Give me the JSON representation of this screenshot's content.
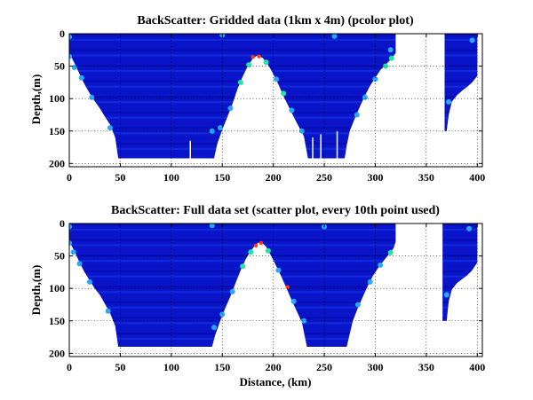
{
  "figure": {
    "background": "#ffffff"
  },
  "chart_data": [
    {
      "type": "heatmap",
      "title": "BackScatter: Gridded data (1km x 4m) (pcolor plot)",
      "xlabel": "",
      "ylabel": "Depth,(m)",
      "xlim": [
        0,
        405
      ],
      "ylim": [
        0,
        205
      ],
      "y_reversed": true,
      "grid": true,
      "xticks": [
        "0",
        "50",
        "100",
        "150",
        "200",
        "250",
        "300",
        "350",
        "400"
      ],
      "yticks": [
        "0",
        "50",
        "100",
        "150",
        "200"
      ],
      "colors": {
        "base": "#0a14c8",
        "deep": "#00008f",
        "shallow": "#1e50ff",
        "mid": "#2aa8ff",
        "high": "#21e5a0",
        "hot": "#ff3a0a"
      },
      "data_region": [
        [
          0,
          30
        ],
        [
          5,
          45
        ],
        [
          10,
          62
        ],
        [
          15,
          78
        ],
        [
          20,
          92
        ],
        [
          25,
          104
        ],
        [
          30,
          115
        ],
        [
          35,
          128
        ],
        [
          40,
          140
        ],
        [
          45,
          160
        ],
        [
          48,
          192
        ],
        [
          100,
          192
        ],
        [
          142,
          192
        ],
        [
          145,
          170
        ],
        [
          150,
          148
        ],
        [
          155,
          128
        ],
        [
          160,
          108
        ],
        [
          165,
          85
        ],
        [
          170,
          66
        ],
        [
          175,
          50
        ],
        [
          180,
          38
        ],
        [
          185,
          33
        ],
        [
          190,
          38
        ],
        [
          195,
          48
        ],
        [
          200,
          62
        ],
        [
          205,
          78
        ],
        [
          210,
          96
        ],
        [
          215,
          112
        ],
        [
          220,
          128
        ],
        [
          225,
          143
        ],
        [
          230,
          158
        ],
        [
          234,
          192
        ],
        [
          270,
          192
        ],
        [
          272,
          172
        ],
        [
          275,
          150
        ],
        [
          280,
          130
        ],
        [
          285,
          112
        ],
        [
          290,
          95
        ],
        [
          295,
          80
        ],
        [
          300,
          68
        ],
        [
          305,
          56
        ],
        [
          310,
          48
        ],
        [
          315,
          40
        ],
        [
          320,
          30
        ],
        [
          320,
          0
        ],
        [
          0,
          0
        ]
      ],
      "data_region_far": [
        [
          368,
          0
        ],
        [
          400,
          0
        ],
        [
          400,
          65
        ],
        [
          395,
          75
        ],
        [
          390,
          82
        ],
        [
          385,
          88
        ],
        [
          380,
          95
        ],
        [
          375,
          105
        ],
        [
          372,
          125
        ],
        [
          370,
          150
        ],
        [
          368,
          150
        ]
      ],
      "edge_highlights": [
        [
          0,
          35,
          "mid"
        ],
        [
          5,
          52,
          "mid"
        ],
        [
          12,
          68,
          "mid"
        ],
        [
          22,
          98,
          "mid"
        ],
        [
          40,
          145,
          "mid"
        ],
        [
          140,
          150,
          "mid"
        ],
        [
          148,
          145,
          "mid"
        ],
        [
          158,
          115,
          "mid"
        ],
        [
          168,
          75,
          "high"
        ],
        [
          176,
          48,
          "high"
        ],
        [
          180,
          36,
          "hot"
        ],
        [
          186,
          35,
          "hot"
        ],
        [
          193,
          44,
          "high"
        ],
        [
          203,
          70,
          "mid"
        ],
        [
          210,
          92,
          "high"
        ],
        [
          218,
          118,
          "mid"
        ],
        [
          228,
          150,
          "mid"
        ],
        [
          282,
          125,
          "mid"
        ],
        [
          290,
          98,
          "mid"
        ],
        [
          300,
          70,
          "mid"
        ],
        [
          310,
          50,
          "high"
        ],
        [
          316,
          38,
          "high"
        ],
        [
          315,
          25,
          "mid"
        ],
        [
          0,
          5,
          "mid"
        ],
        [
          150,
          2,
          "mid"
        ],
        [
          260,
          4,
          "mid"
        ],
        [
          372,
          105,
          "mid"
        ],
        [
          395,
          10,
          "mid"
        ]
      ],
      "gaps": [
        [
          118,
          165,
          192
        ],
        [
          238,
          160,
          192
        ],
        [
          246,
          155,
          192
        ],
        [
          262,
          150,
          192
        ],
        [
          375,
          120,
          150
        ]
      ]
    },
    {
      "type": "scatter",
      "title": "BackScatter: Full data set (scatter plot, every 10th point used)",
      "xlabel": "Distance, (km)",
      "ylabel": "Depth,(m)",
      "xlim": [
        0,
        405
      ],
      "ylim": [
        0,
        205
      ],
      "y_reversed": true,
      "grid": true,
      "xticks": [
        "0",
        "50",
        "100",
        "150",
        "200",
        "250",
        "300",
        "350",
        "400"
      ],
      "yticks": [
        "0",
        "50",
        "100",
        "150",
        "200"
      ],
      "colors": {
        "base": "#0a14c8",
        "deep": "#00008f",
        "shallow": "#1e50ff",
        "mid": "#2aa8ff",
        "high": "#21e5a0",
        "hot": "#ff3a0a"
      },
      "data_region": [
        [
          0,
          28
        ],
        [
          5,
          42
        ],
        [
          10,
          60
        ],
        [
          15,
          75
        ],
        [
          20,
          88
        ],
        [
          25,
          100
        ],
        [
          30,
          110
        ],
        [
          35,
          124
        ],
        [
          40,
          138
        ],
        [
          45,
          158
        ],
        [
          48,
          190
        ],
        [
          100,
          190
        ],
        [
          140,
          190
        ],
        [
          143,
          172
        ],
        [
          148,
          150
        ],
        [
          153,
          130
        ],
        [
          158,
          112
        ],
        [
          163,
          92
        ],
        [
          168,
          72
        ],
        [
          173,
          55
        ],
        [
          178,
          42
        ],
        [
          183,
          32
        ],
        [
          188,
          28
        ],
        [
          193,
          36
        ],
        [
          198,
          50
        ],
        [
          203,
          66
        ],
        [
          208,
          82
        ],
        [
          213,
          100
        ],
        [
          218,
          118
        ],
        [
          223,
          135
        ],
        [
          228,
          152
        ],
        [
          233,
          190
        ],
        [
          272,
          190
        ],
        [
          275,
          170
        ],
        [
          278,
          150
        ],
        [
          283,
          130
        ],
        [
          288,
          112
        ],
        [
          293,
          95
        ],
        [
          298,
          80
        ],
        [
          303,
          68
        ],
        [
          308,
          58
        ],
        [
          313,
          48
        ],
        [
          318,
          38
        ],
        [
          320,
          28
        ],
        [
          320,
          0
        ],
        [
          0,
          0
        ]
      ],
      "data_region_far": [
        [
          366,
          0
        ],
        [
          400,
          0
        ],
        [
          400,
          60
        ],
        [
          395,
          72
        ],
        [
          390,
          80
        ],
        [
          385,
          86
        ],
        [
          380,
          92
        ],
        [
          375,
          102
        ],
        [
          372,
          120
        ],
        [
          370,
          150
        ],
        [
          366,
          150
        ]
      ],
      "edge_highlights": [
        [
          0,
          30,
          "mid"
        ],
        [
          4,
          44,
          "mid"
        ],
        [
          10,
          62,
          "mid"
        ],
        [
          20,
          90,
          "mid"
        ],
        [
          38,
          135,
          "mid"
        ],
        [
          142,
          160,
          "mid"
        ],
        [
          150,
          140,
          "mid"
        ],
        [
          160,
          105,
          "mid"
        ],
        [
          170,
          66,
          "high"
        ],
        [
          178,
          44,
          "high"
        ],
        [
          183,
          34,
          "hot"
        ],
        [
          188,
          30,
          "hot"
        ],
        [
          195,
          42,
          "high"
        ],
        [
          205,
          72,
          "mid"
        ],
        [
          214,
          98,
          "hot"
        ],
        [
          220,
          120,
          "mid"
        ],
        [
          230,
          150,
          "mid"
        ],
        [
          283,
          125,
          "mid"
        ],
        [
          295,
          90,
          "mid"
        ],
        [
          305,
          64,
          "mid"
        ],
        [
          315,
          45,
          "high"
        ],
        [
          0,
          5,
          "mid"
        ],
        [
          140,
          3,
          "mid"
        ],
        [
          250,
          5,
          "mid"
        ],
        [
          370,
          110,
          "mid"
        ],
        [
          392,
          8,
          "mid"
        ]
      ],
      "gaps": [
        [
          375,
          115,
          150
        ]
      ]
    }
  ]
}
